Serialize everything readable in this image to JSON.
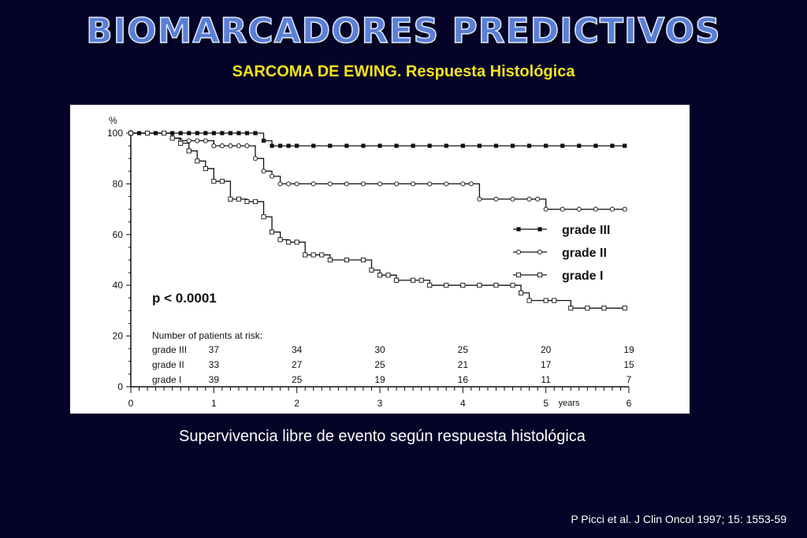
{
  "slide": {
    "title": "BIOMARCADORES PREDICTIVOS",
    "subtitle": "SARCOMA DE EWING. Respuesta Histológica",
    "caption": "Supervivencia libre de evento según respuesta histológica",
    "citation": "P Picci et al. J Clin Oncol 1997; 15: 1553-59"
  },
  "chart_data": {
    "type": "line",
    "title": "",
    "xlabel": "years",
    "ylabel": "%",
    "xlim": [
      0,
      6
    ],
    "ylim": [
      0,
      100
    ],
    "x_ticks": [
      "0",
      "1",
      "2",
      "3",
      "4",
      "5",
      "6"
    ],
    "y_ticks": [
      "0",
      "20",
      "40",
      "60",
      "80",
      "100"
    ],
    "annotation": "p < 0.0001",
    "legend_placement": "right",
    "series": [
      {
        "name": "grade III",
        "marker": "filled-square",
        "points": [
          [
            0,
            100
          ],
          [
            0.1,
            100
          ],
          [
            0.2,
            100
          ],
          [
            0.3,
            100
          ],
          [
            0.4,
            100
          ],
          [
            0.5,
            100
          ],
          [
            0.6,
            100
          ],
          [
            0.7,
            100
          ],
          [
            0.8,
            100
          ],
          [
            0.9,
            100
          ],
          [
            1.0,
            100
          ],
          [
            1.1,
            100
          ],
          [
            1.2,
            100
          ],
          [
            1.3,
            100
          ],
          [
            1.4,
            100
          ],
          [
            1.5,
            100
          ],
          [
            1.6,
            97
          ],
          [
            1.7,
            95
          ],
          [
            1.8,
            95
          ],
          [
            1.9,
            95
          ],
          [
            2.0,
            95
          ],
          [
            2.2,
            95
          ],
          [
            2.4,
            95
          ],
          [
            2.6,
            95
          ],
          [
            2.8,
            95
          ],
          [
            3.0,
            95
          ],
          [
            3.2,
            95
          ],
          [
            3.4,
            95
          ],
          [
            3.6,
            95
          ],
          [
            3.8,
            95
          ],
          [
            4.0,
            95
          ],
          [
            4.2,
            95
          ],
          [
            4.4,
            95
          ],
          [
            4.6,
            95
          ],
          [
            4.8,
            95
          ],
          [
            5.0,
            95
          ],
          [
            5.2,
            95
          ],
          [
            5.4,
            95
          ],
          [
            5.6,
            95
          ],
          [
            5.8,
            95
          ],
          [
            5.95,
            95
          ]
        ]
      },
      {
        "name": "grade II",
        "marker": "open-circle",
        "points": [
          [
            0,
            100
          ],
          [
            0.2,
            100
          ],
          [
            0.4,
            100
          ],
          [
            0.5,
            98
          ],
          [
            0.6,
            97
          ],
          [
            0.7,
            97
          ],
          [
            0.8,
            97
          ],
          [
            0.9,
            97
          ],
          [
            1.0,
            95
          ],
          [
            1.1,
            95
          ],
          [
            1.2,
            95
          ],
          [
            1.3,
            95
          ],
          [
            1.4,
            95
          ],
          [
            1.5,
            90
          ],
          [
            1.6,
            85
          ],
          [
            1.7,
            83
          ],
          [
            1.8,
            80
          ],
          [
            1.9,
            80
          ],
          [
            2.0,
            80
          ],
          [
            2.2,
            80
          ],
          [
            2.4,
            80
          ],
          [
            2.6,
            80
          ],
          [
            2.8,
            80
          ],
          [
            3.0,
            80
          ],
          [
            3.2,
            80
          ],
          [
            3.4,
            80
          ],
          [
            3.6,
            80
          ],
          [
            3.8,
            80
          ],
          [
            4.0,
            80
          ],
          [
            4.1,
            80
          ],
          [
            4.2,
            74
          ],
          [
            4.4,
            74
          ],
          [
            4.6,
            74
          ],
          [
            4.8,
            74
          ],
          [
            4.9,
            74
          ],
          [
            5.0,
            70
          ],
          [
            5.2,
            70
          ],
          [
            5.4,
            70
          ],
          [
            5.6,
            70
          ],
          [
            5.8,
            70
          ],
          [
            5.95,
            70
          ]
        ]
      },
      {
        "name": "grade I",
        "marker": "open-square",
        "points": [
          [
            0,
            100
          ],
          [
            0.2,
            100
          ],
          [
            0.4,
            100
          ],
          [
            0.5,
            98
          ],
          [
            0.6,
            96
          ],
          [
            0.7,
            93
          ],
          [
            0.8,
            89
          ],
          [
            0.9,
            86
          ],
          [
            1.0,
            81
          ],
          [
            1.1,
            81
          ],
          [
            1.2,
            74
          ],
          [
            1.3,
            74
          ],
          [
            1.4,
            73
          ],
          [
            1.5,
            73
          ],
          [
            1.6,
            67
          ],
          [
            1.7,
            61
          ],
          [
            1.8,
            58
          ],
          [
            1.9,
            57
          ],
          [
            2.0,
            57
          ],
          [
            2.1,
            52
          ],
          [
            2.2,
            52
          ],
          [
            2.3,
            52
          ],
          [
            2.4,
            50
          ],
          [
            2.6,
            50
          ],
          [
            2.8,
            50
          ],
          [
            2.9,
            46
          ],
          [
            3.0,
            44
          ],
          [
            3.1,
            44
          ],
          [
            3.2,
            42
          ],
          [
            3.4,
            42
          ],
          [
            3.5,
            42
          ],
          [
            3.6,
            40
          ],
          [
            3.8,
            40
          ],
          [
            4.0,
            40
          ],
          [
            4.2,
            40
          ],
          [
            4.4,
            40
          ],
          [
            4.6,
            40
          ],
          [
            4.7,
            37
          ],
          [
            4.8,
            34
          ],
          [
            5.0,
            34
          ],
          [
            5.1,
            34
          ],
          [
            5.3,
            31
          ],
          [
            5.5,
            31
          ],
          [
            5.7,
            31
          ],
          [
            5.95,
            31
          ]
        ]
      }
    ],
    "risk_table": {
      "header": "Number of patients at risk:",
      "x_positions": [
        1,
        2,
        3,
        4,
        5,
        6
      ],
      "rows": [
        {
          "label": "grade III",
          "values": [
            "37",
            "34",
            "30",
            "25",
            "20",
            "19"
          ]
        },
        {
          "label": "grade II",
          "values": [
            "33",
            "27",
            "25",
            "21",
            "17",
            "15"
          ]
        },
        {
          "label": "grade I",
          "values": [
            "39",
            "25",
            "19",
            "16",
            "11",
            "7"
          ]
        }
      ]
    }
  }
}
